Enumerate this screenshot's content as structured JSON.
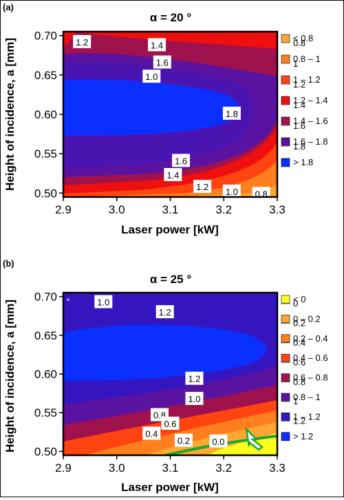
{
  "chart_data": [
    {
      "panel_label": "(a)",
      "type": "contour",
      "title": "α = 20 °",
      "xlabel": "Laser power [kW]",
      "ylabel": "Height of incidence, a [mm]",
      "xlim": [
        2.9,
        3.3
      ],
      "ylim": [
        0.495,
        0.705
      ],
      "xticks": [
        "2.9",
        "3.0",
        "3.1",
        "3.2",
        "3.3"
      ],
      "yticks": [
        "0.50",
        "0.55",
        "0.60",
        "0.65",
        "0.70"
      ],
      "xtick_values": [
        2.9,
        3.0,
        3.1,
        3.2,
        3.3
      ],
      "ytick_values": [
        0.5,
        0.55,
        0.6,
        0.65,
        0.7
      ],
      "levels": [
        0.8,
        1.0,
        1.2,
        1.4,
        1.6,
        1.8
      ],
      "level_labels": [
        "0.8",
        "1",
        "1.2",
        "1.4",
        "1.6",
        "1.8"
      ],
      "legend": [
        {
          "label": "< 0.8",
          "color": "#ffa733"
        },
        {
          "label": "0.8 – 1",
          "color": "#ff7f1e"
        },
        {
          "label": "1 – 1.2",
          "color": "#ff4412"
        },
        {
          "label": "1.2 – 1.4",
          "color": "#ee0f0f"
        },
        {
          "label": "1.4 – 1.6",
          "color": "#a0124d"
        },
        {
          "label": "1.6 – 1.8",
          "color": "#5a12a0"
        },
        {
          "label": "> 1.8",
          "color": "#0a2fff"
        }
      ],
      "contour_labels": [
        {
          "text": "1.2",
          "x": 2.935,
          "y": 0.692
        },
        {
          "text": "1.4",
          "x": 3.075,
          "y": 0.688
        },
        {
          "text": "1.6",
          "x": 3.085,
          "y": 0.666
        },
        {
          "text": "1.0",
          "x": 3.065,
          "y": 0.648
        },
        {
          "text": "1.8",
          "x": 3.215,
          "y": 0.601
        },
        {
          "text": "1.6",
          "x": 3.12,
          "y": 0.541
        },
        {
          "text": "1.4",
          "x": 3.105,
          "y": 0.523
        },
        {
          "text": "1.2",
          "x": 3.16,
          "y": 0.508
        },
        {
          "text": "1.0",
          "x": 3.215,
          "y": 0.502
        },
        {
          "text": "0.8",
          "x": 3.27,
          "y": 0.499
        }
      ]
    },
    {
      "panel_label": "(b)",
      "type": "contour",
      "title": "α = 25 °",
      "xlabel": "Laser power [kW]",
      "ylabel": "Height of incidence, a [mm]",
      "xlim": [
        2.9,
        3.3
      ],
      "ylim": [
        0.495,
        0.705
      ],
      "xticks": [
        "2.9",
        "3.0",
        "3.1",
        "3.2",
        "3.3"
      ],
      "yticks": [
        "0.50",
        "0.55",
        "0.60",
        "0.65",
        "0.70"
      ],
      "xtick_values": [
        2.9,
        3.0,
        3.1,
        3.2,
        3.3
      ],
      "ytick_values": [
        0.5,
        0.55,
        0.6,
        0.65,
        0.7
      ],
      "levels": [
        0.0,
        0.2,
        0.4,
        0.6,
        0.8,
        1.0,
        1.2
      ],
      "level_labels": [
        "0",
        "0.2",
        "0.4",
        "0.6",
        "0.8",
        "1",
        "1.2"
      ],
      "legend": [
        {
          "label": "< 0",
          "color": "#ffff1e"
        },
        {
          "label": "0 – 0.2",
          "color": "#ffa733"
        },
        {
          "label": "0.2 – 0.4",
          "color": "#ff7f1e"
        },
        {
          "label": "0.4 – 0.6",
          "color": "#ff4412"
        },
        {
          "label": "0.6 – 0.8",
          "color": "#a0124d"
        },
        {
          "label": "0.8 – 1",
          "color": "#5a12a0"
        },
        {
          "label": "1 – 1.2",
          "color": "#3415c0"
        },
        {
          "label": "> 1.2",
          "color": "#0a2fff"
        }
      ],
      "contour_labels": [
        {
          "text": "1.0",
          "x": 2.975,
          "y": 0.693
        },
        {
          "text": "1.2",
          "x": 3.09,
          "y": 0.68
        },
        {
          "text": "1.2",
          "x": 3.145,
          "y": 0.594
        },
        {
          "text": "1.0",
          "x": 3.145,
          "y": 0.568
        },
        {
          "text": "0.8",
          "x": 3.08,
          "y": 0.547
        },
        {
          "text": "0.6",
          "x": 3.1,
          "y": 0.536
        },
        {
          "text": "0.4",
          "x": 3.065,
          "y": 0.523
        },
        {
          "text": "0.2",
          "x": 3.125,
          "y": 0.514
        },
        {
          "text": "0.0",
          "x": 3.19,
          "y": 0.513
        }
      ]
    }
  ]
}
